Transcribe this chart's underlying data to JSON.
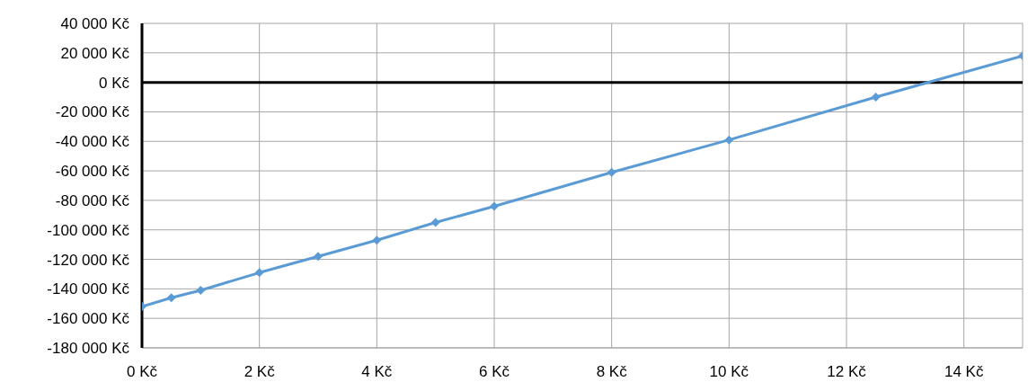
{
  "chart_data": {
    "type": "line",
    "x": [
      0,
      0.5,
      1,
      2,
      3,
      4,
      5,
      6,
      8,
      10,
      12.5,
      15
    ],
    "series": [
      {
        "color": "#5b9bd5",
        "values": [
          -152000,
          -146000,
          -141000,
          -129000,
          -118000,
          -107000,
          -95000,
          -84000,
          -61000,
          -39000,
          -10000,
          18000
        ]
      }
    ],
    "xlim": [
      0,
      15
    ],
    "xticks": [
      {
        "value": 0,
        "label": "0 Kč"
      },
      {
        "value": 2,
        "label": "2 Kč"
      },
      {
        "value": 4,
        "label": "4 Kč"
      },
      {
        "value": 6,
        "label": "6 Kč"
      },
      {
        "value": 8,
        "label": "8 Kč"
      },
      {
        "value": 10,
        "label": "10 Kč"
      },
      {
        "value": 12,
        "label": "12 Kč"
      },
      {
        "value": 14,
        "label": "14 Kč"
      }
    ],
    "ylim": [
      -180000,
      40000
    ],
    "yticks": [
      {
        "value": 40000,
        "label": "40 000 Kč"
      },
      {
        "value": 20000,
        "label": "20 000 Kč"
      },
      {
        "value": 0,
        "label": "0 Kč"
      },
      {
        "value": -20000,
        "label": "-20 000 Kč"
      },
      {
        "value": -40000,
        "label": "-40 000 Kč"
      },
      {
        "value": -60000,
        "label": "-60 000 Kč"
      },
      {
        "value": -80000,
        "label": "-80 000 Kč"
      },
      {
        "value": -100000,
        "label": "-100 000 Kč"
      },
      {
        "value": -120000,
        "label": "-120 000 Kč"
      },
      {
        "value": -140000,
        "label": "-140 000 Kč"
      },
      {
        "value": -160000,
        "label": "-160 000 Kč"
      },
      {
        "value": -180000,
        "label": "-180 000 Kč"
      }
    ],
    "ref_lines": [
      {
        "axis": "y",
        "value": 0,
        "color": "#000000"
      }
    ],
    "grid": true,
    "marker": "diamond",
    "line_style": "solid"
  }
}
